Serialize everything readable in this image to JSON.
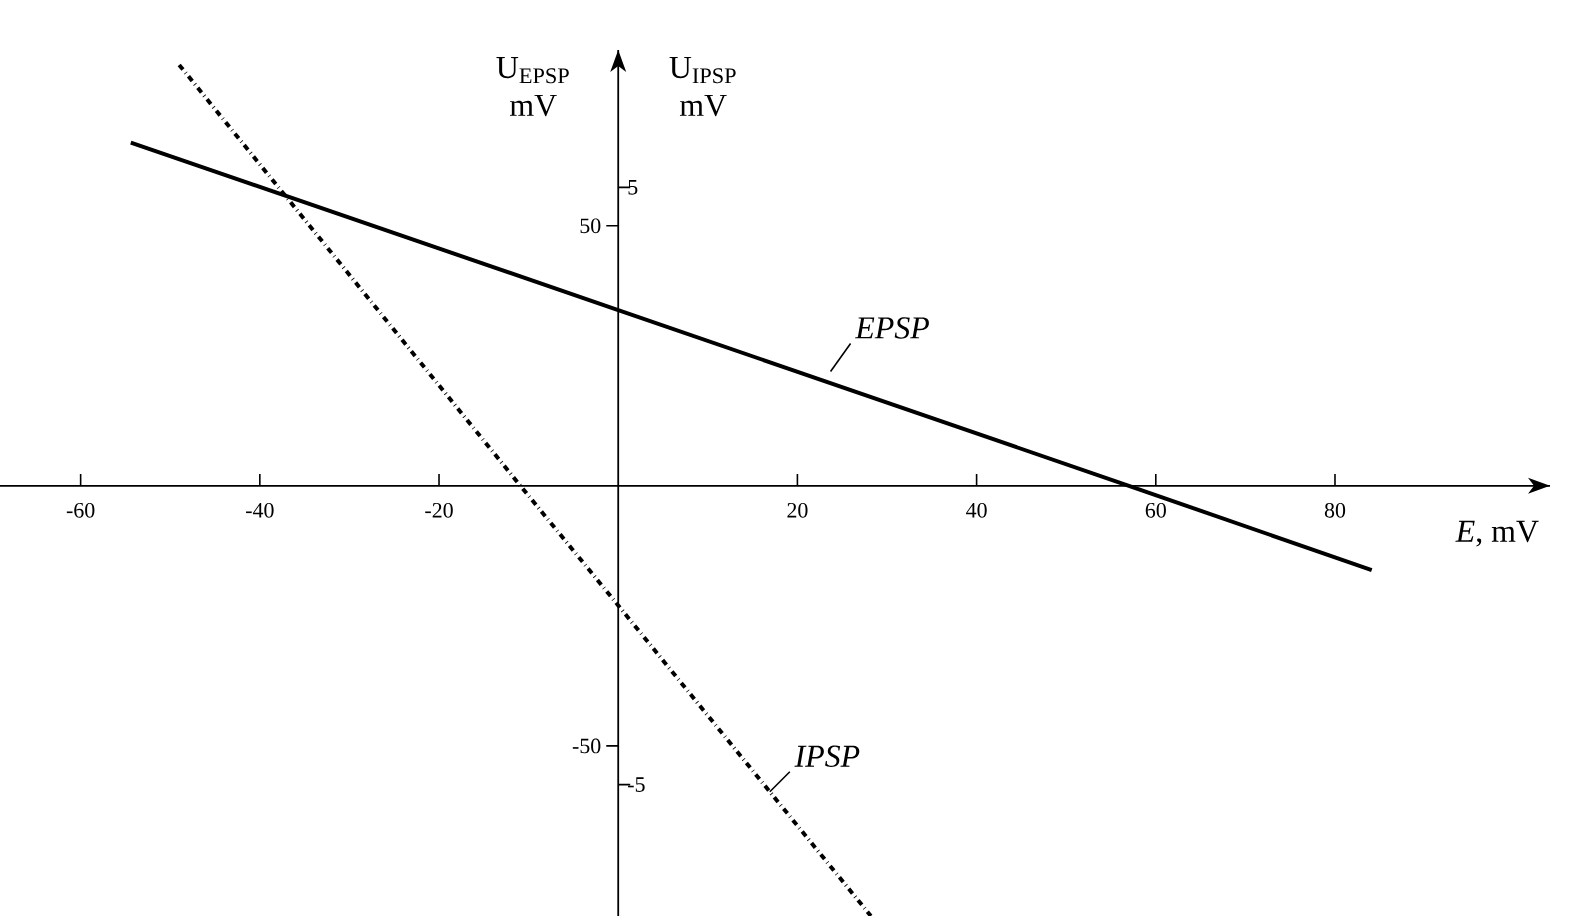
{
  "chart_data": {
    "type": "line",
    "xlabel": "*E*, mV",
    "ylabel": "U$_{EPSP}$ mV",
    "y2label": "U$_{IPSP}$ mV",
    "xlim": [
      -69,
      104
    ],
    "ylim": [
      -82.7,
      83.8
    ],
    "y2lim": [
      -7.2,
      7.3
    ],
    "xticks": [
      -60,
      -40,
      -20,
      20,
      40,
      60,
      80
    ],
    "yticks": [
      -50,
      50
    ],
    "y2ticks": [
      -5,
      5
    ],
    "series": [
      {
        "color": "#000000",
        "line_style": "solid",
        "x": [
          -54.4,
          0,
          57,
          84.1
        ],
        "values": [
          66,
          33.8,
          0,
          -16.2
        ]
      },
      {
        "axis": "y2",
        "color": "#000000",
        "line_style": "dashdot",
        "x": [
          -49,
          -10.9,
          0,
          28.2
        ],
        "values": [
          7.05,
          0,
          -2.0,
          -7.2
        ]
      }
    ],
    "annotations": [
      {
        "text": "EPSP",
        "x": 23.7,
        "y": 22
      },
      "IPSP"
    ]
  }
}
